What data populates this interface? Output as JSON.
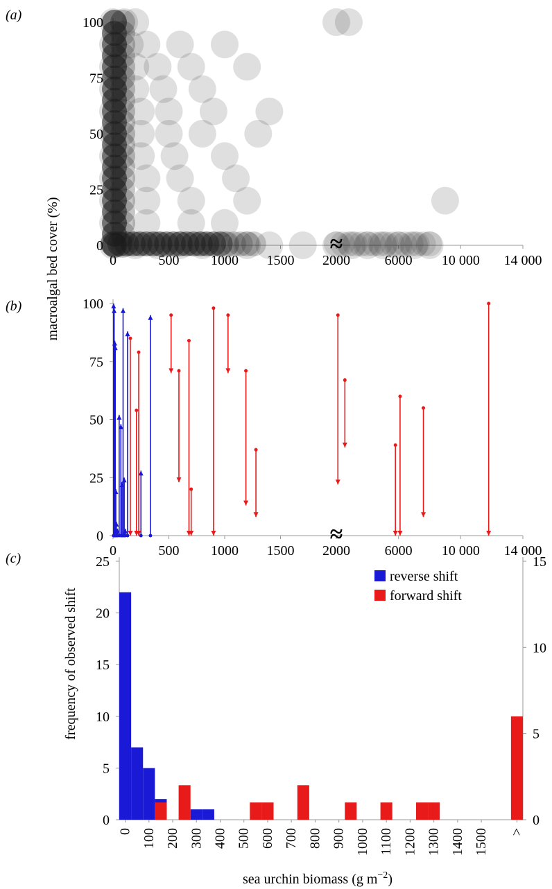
{
  "figure": {
    "panel_labels": [
      "(a)",
      "(b)",
      "(c)"
    ],
    "ylabel_ab": "macroalgal bed cover (%)",
    "ylabel_c": "frequency of observed shift",
    "xlabel_c_main": "sea urchin biomass (g m",
    "xlabel_c_sup": "−2",
    "xlabel_c_end": ")",
    "axis_break_symbol": "≈"
  },
  "chart_data": [
    {
      "panel": "(a)",
      "type": "scatter",
      "ylabel": "macroalgal bed cover (%)",
      "x_tick_labels": [
        "0",
        "500",
        "1000",
        "1500",
        "2000",
        "6000",
        "10 000",
        "14 000"
      ],
      "y_tick_labels": [
        "0",
        "25",
        "50",
        "75",
        "100"
      ],
      "x_axis": "broken at 2000; 0–2000 linear, then 2000–14000",
      "ylim": [
        0,
        100
      ],
      "marker": "semi-transparent black circles",
      "color": "#1a1a1a",
      "density_note": "points concentrated at x < 500 across all cover values and along y = 0 up to ~1300",
      "sample_points": [
        {
          "x": 0,
          "y": 100
        },
        {
          "x": 100,
          "y": 100
        },
        {
          "x": 200,
          "y": 100
        },
        {
          "x": 2000,
          "y": 100
        },
        {
          "x": 2800,
          "y": 100
        },
        {
          "x": 0,
          "y": 90
        },
        {
          "x": 150,
          "y": 90
        },
        {
          "x": 300,
          "y": 90
        },
        {
          "x": 600,
          "y": 90
        },
        {
          "x": 1000,
          "y": 90
        },
        {
          "x": 0,
          "y": 80
        },
        {
          "x": 200,
          "y": 80
        },
        {
          "x": 400,
          "y": 80
        },
        {
          "x": 700,
          "y": 80
        },
        {
          "x": 1200,
          "y": 80
        },
        {
          "x": 0,
          "y": 70
        },
        {
          "x": 200,
          "y": 70
        },
        {
          "x": 450,
          "y": 70
        },
        {
          "x": 800,
          "y": 70
        },
        {
          "x": 0,
          "y": 60
        },
        {
          "x": 250,
          "y": 60
        },
        {
          "x": 500,
          "y": 60
        },
        {
          "x": 900,
          "y": 60
        },
        {
          "x": 1400,
          "y": 60
        },
        {
          "x": 0,
          "y": 50
        },
        {
          "x": 250,
          "y": 50
        },
        {
          "x": 500,
          "y": 50
        },
        {
          "x": 800,
          "y": 50
        },
        {
          "x": 1300,
          "y": 50
        },
        {
          "x": 0,
          "y": 40
        },
        {
          "x": 250,
          "y": 40
        },
        {
          "x": 550,
          "y": 40
        },
        {
          "x": 1000,
          "y": 40
        },
        {
          "x": 0,
          "y": 30
        },
        {
          "x": 300,
          "y": 30
        },
        {
          "x": 600,
          "y": 30
        },
        {
          "x": 1100,
          "y": 30
        },
        {
          "x": 0,
          "y": 20
        },
        {
          "x": 300,
          "y": 20
        },
        {
          "x": 700,
          "y": 20
        },
        {
          "x": 1200,
          "y": 20
        },
        {
          "x": 9000,
          "y": 20
        },
        {
          "x": 0,
          "y": 10
        },
        {
          "x": 300,
          "y": 10
        },
        {
          "x": 700,
          "y": 10
        },
        {
          "x": 1000,
          "y": 10
        },
        {
          "x": 0,
          "y": 0
        },
        {
          "x": 200,
          "y": 0
        },
        {
          "x": 400,
          "y": 0
        },
        {
          "x": 600,
          "y": 0
        },
        {
          "x": 800,
          "y": 0
        },
        {
          "x": 1000,
          "y": 0
        },
        {
          "x": 1200,
          "y": 0
        },
        {
          "x": 1400,
          "y": 0
        },
        {
          "x": 1700,
          "y": 0
        },
        {
          "x": 2000,
          "y": 0
        },
        {
          "x": 3000,
          "y": 0
        },
        {
          "x": 4000,
          "y": 0
        },
        {
          "x": 5000,
          "y": 0
        },
        {
          "x": 6000,
          "y": 0
        },
        {
          "x": 7000,
          "y": 0
        },
        {
          "x": 8000,
          "y": 0
        }
      ]
    },
    {
      "panel": "(b)",
      "type": "line",
      "ylabel": "macroalgal bed cover (%)",
      "x_tick_labels": [
        "0",
        "500",
        "1000",
        "1500",
        "2000",
        "6000",
        "10 000",
        "14 000"
      ],
      "y_tick_labels": [
        "0",
        "25",
        "50",
        "75",
        "100"
      ],
      "x_axis": "broken at 2000; 0–2000 linear, then 2000–14000",
      "ylim": [
        0,
        100
      ],
      "series": [
        {
          "color": "#1a1ad6",
          "direction": "upward arrows",
          "arrows": [
            {
              "x": 5,
              "y0": 0,
              "y1": 100
            },
            {
              "x": 10,
              "y0": 0,
              "y1": 98
            },
            {
              "x": 15,
              "y0": 0,
              "y1": 84
            },
            {
              "x": 20,
              "y0": 0,
              "y1": 82
            },
            {
              "x": 25,
              "y0": 0,
              "y1": 20
            },
            {
              "x": 30,
              "y0": 0,
              "y1": 6
            },
            {
              "x": 40,
              "y0": 0,
              "y1": 3
            },
            {
              "x": 55,
              "y0": 0,
              "y1": 52
            },
            {
              "x": 70,
              "y0": 0,
              "y1": 48
            },
            {
              "x": 80,
              "y0": 0,
              "y1": 23
            },
            {
              "x": 90,
              "y0": 0,
              "y1": 98
            },
            {
              "x": 100,
              "y0": 0,
              "y1": 25
            },
            {
              "x": 110,
              "y0": 0,
              "y1": 3
            },
            {
              "x": 130,
              "y0": 0,
              "y1": 88
            },
            {
              "x": 250,
              "y0": 0,
              "y1": 28
            },
            {
              "x": 335,
              "y0": 0,
              "y1": 95
            }
          ]
        },
        {
          "color": "#e81a1a",
          "direction": "downward arrows",
          "arrows": [
            {
              "x": 155,
              "y0": 85,
              "y1": 0
            },
            {
              "x": 210,
              "y0": 54,
              "y1": 0
            },
            {
              "x": 230,
              "y0": 79,
              "y1": 0
            },
            {
              "x": 520,
              "y0": 95,
              "y1": 70
            },
            {
              "x": 590,
              "y0": 71,
              "y1": 23
            },
            {
              "x": 680,
              "y0": 84,
              "y1": 0
            },
            {
              "x": 700,
              "y0": 20,
              "y1": 0
            },
            {
              "x": 900,
              "y0": 98,
              "y1": 0
            },
            {
              "x": 1030,
              "y0": 95,
              "y1": 70
            },
            {
              "x": 1190,
              "y0": 71,
              "y1": 13
            },
            {
              "x": 1280,
              "y0": 37,
              "y1": 8
            },
            {
              "x": 2100,
              "y0": 95,
              "y1": 22
            },
            {
              "x": 2550,
              "y0": 67,
              "y1": 38
            },
            {
              "x": 5800,
              "y0": 39,
              "y1": 0
            },
            {
              "x": 6100,
              "y0": 60,
              "y1": 0
            },
            {
              "x": 7600,
              "y0": 55,
              "y1": 8
            },
            {
              "x": 11800,
              "y0": 100,
              "y1": 0
            }
          ]
        }
      ]
    },
    {
      "panel": "(c)",
      "type": "bar",
      "xlabel": "sea urchin biomass (g m−2)",
      "ylabel": "frequency of observed shift",
      "bin_width": 50,
      "x_tick_labels": [
        "0",
        "100",
        "200",
        "300",
        "400",
        "500",
        "600",
        "700",
        "800",
        "900",
        "1000",
        "1100",
        "1200",
        "1300",
        "1400",
        "1500",
        ">"
      ],
      "y_left_tick_labels": [
        "0",
        "5",
        "10",
        "15",
        "20",
        "25"
      ],
      "y_right_tick_labels": [
        "0",
        "5",
        "10",
        "15"
      ],
      "ylim_left": [
        0,
        25
      ],
      "ylim_right": [
        0,
        15
      ],
      "legend_position": "top-right",
      "series": [
        {
          "name": "reverse shift",
          "color": "#1a1ad6",
          "axis": "left",
          "bins": [
            {
              "x0": 0,
              "value": 22
            },
            {
              "x0": 50,
              "value": 7
            },
            {
              "x0": 100,
              "value": 5
            },
            {
              "x0": 150,
              "value": 2
            },
            {
              "x0": 300,
              "value": 1
            },
            {
              "x0": 350,
              "value": 1
            }
          ]
        },
        {
          "name": "forward shift",
          "color": "#e81a1a",
          "axis": "right",
          "bins": [
            {
              "x0": 150,
              "value": 1
            },
            {
              "x0": 250,
              "value": 2
            },
            {
              "x0": 550,
              "value": 1
            },
            {
              "x0": 600,
              "value": 1
            },
            {
              "x0": 750,
              "value": 2
            },
            {
              "x0": 950,
              "value": 1
            },
            {
              "x0": 1100,
              "value": 1
            },
            {
              "x0": 1250,
              "value": 1
            },
            {
              "x0": 1300,
              "value": 1
            },
            {
              "x0": ">",
              "value": 6
            }
          ]
        }
      ]
    }
  ]
}
